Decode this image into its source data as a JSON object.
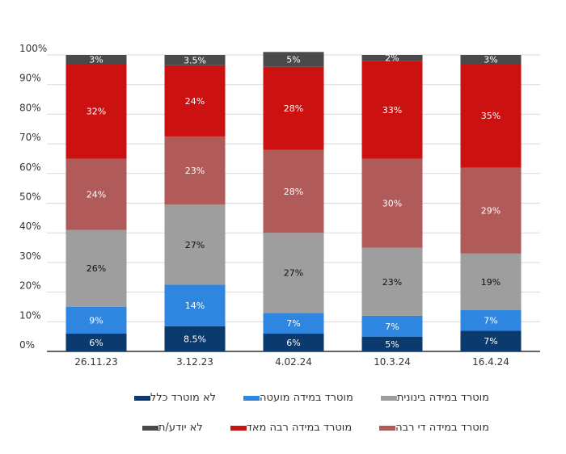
{
  "chart_data": {
    "type": "bar",
    "stacked": true,
    "categories": [
      "26.11.23",
      "3.12.23",
      "4.02.24",
      "10.3.24",
      "16.4.24"
    ],
    "y_ticks": [
      "0%",
      "10%",
      "20%",
      "30%",
      "40%",
      "50%",
      "60%",
      "70%",
      "80%",
      "90%",
      "100%"
    ],
    "ylim": [
      0,
      100
    ],
    "grid": true,
    "legend_position": "bottom",
    "series": [
      {
        "name": "לא מוטרד כלל",
        "color": "#0b3a6e",
        "values": [
          6,
          8.5,
          6,
          5,
          7
        ],
        "labels": [
          "6%",
          "8.5%",
          "6%",
          "5%",
          "7%"
        ],
        "label_color": "#ffffff"
      },
      {
        "name": "מוטרד במידה מועטה",
        "color": "#2f86e0",
        "values": [
          9,
          14,
          7,
          7,
          7
        ],
        "labels": [
          "9%",
          "14%",
          "7%",
          "7%",
          "7%"
        ],
        "label_color": "#ffffff"
      },
      {
        "name": "מוטרד במידה בינונית",
        "color": "#9e9e9e",
        "values": [
          26,
          27,
          27,
          23,
          19
        ],
        "labels": [
          "26%",
          "27%",
          "27%",
          "23%",
          "19%"
        ],
        "label_color": "#111111"
      },
      {
        "name": "מוטרד במידה די רבה",
        "color": "#b05a5a",
        "values": [
          24,
          23,
          28,
          30,
          29
        ],
        "labels": [
          "24%",
          "23%",
          "28%",
          "30%",
          "29%"
        ],
        "label_color": "#ffffff"
      },
      {
        "name": "מוטרד במידה רבה מאד",
        "color": "#cc1111",
        "values": [
          32,
          24,
          28,
          33,
          35
        ],
        "labels": [
          "32%",
          "24%",
          "28%",
          "33%",
          "35%"
        ],
        "label_color": "#ffffff"
      },
      {
        "name": "לא יודע/ת",
        "color": "#4a4a4a",
        "values": [
          3,
          3.5,
          5,
          2,
          3
        ],
        "labels": [
          "3%",
          "3.5%",
          "5%",
          "2%",
          "3%"
        ],
        "label_color": "#ffffff"
      }
    ],
    "legend_rows": [
      [
        "לא מוטרד כלל",
        "מוטרד במידה מועטה",
        "מוטרד במידה בינונית"
      ],
      [
        "לא יודע/ת",
        "מוטרד במידה רבה מאד",
        "מוטרד במידה די רבה"
      ]
    ]
  }
}
